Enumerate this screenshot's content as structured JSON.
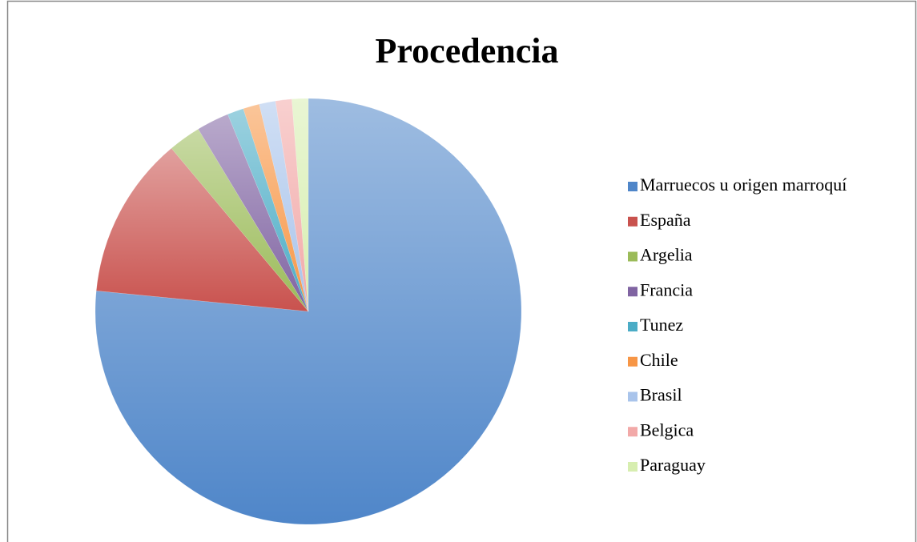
{
  "chart_data": {
    "type": "pie",
    "title": "Procedencia",
    "categories": [
      "Marruecos u origen marroquí",
      "España",
      "Argelia",
      "Francia",
      "Tunez",
      "Chile",
      "Brasil",
      "Belgica",
      "Paraguay"
    ],
    "values": [
      62,
      10,
      2,
      2,
      1,
      1,
      1,
      1,
      1
    ],
    "colors": [
      "#4f86c9",
      "#c9524e",
      "#9bbb59",
      "#8064a2",
      "#4bacc6",
      "#f79646",
      "#a9c4eb",
      "#f2a9a8",
      "#d7eeb0"
    ],
    "legend": "right"
  }
}
